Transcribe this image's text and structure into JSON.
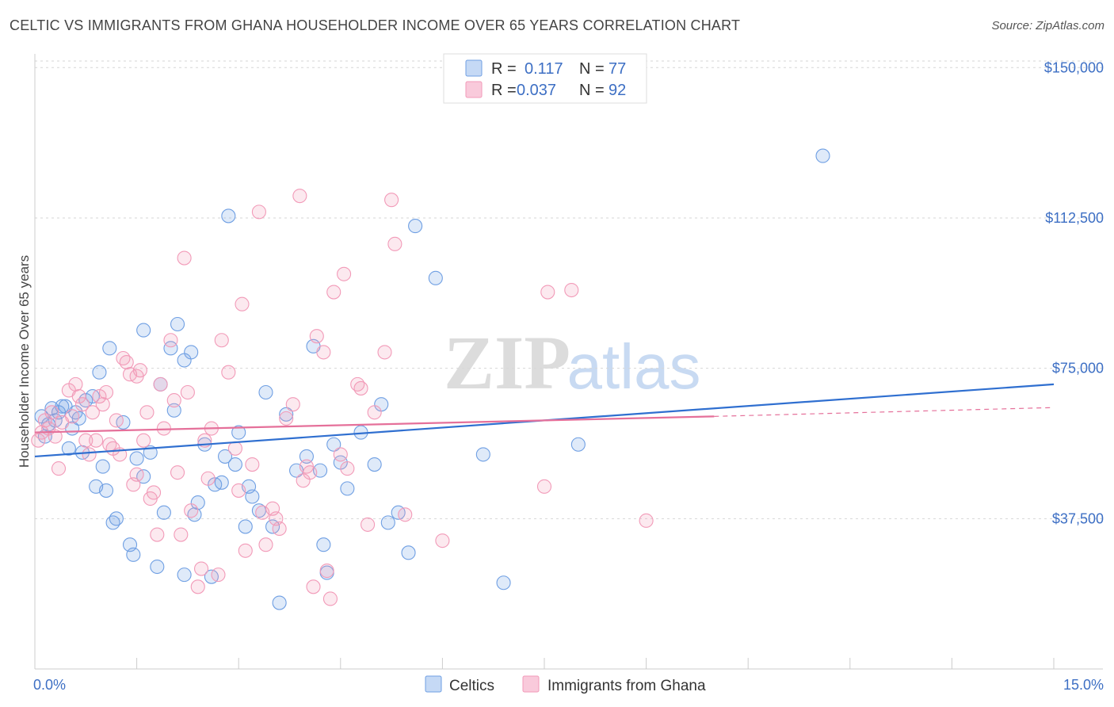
{
  "title": "CELTIC VS IMMIGRANTS FROM GHANA HOUSEHOLDER INCOME OVER 65 YEARS CORRELATION CHART",
  "source": "Source: ZipAtlas.com",
  "watermark": {
    "zip": "ZIP",
    "atlas": "atlas"
  },
  "legend_stats": [
    {
      "r_label": "R =",
      "r_value": "0.117",
      "n_label": "N =",
      "n_value": "77"
    },
    {
      "r_label": "R =",
      "r_value": "0.037",
      "n_label": "N =",
      "n_value": "92"
    }
  ],
  "chart_data": {
    "type": "scatter",
    "title": "CELTIC VS IMMIGRANTS FROM GHANA HOUSEHOLDER INCOME OVER 65 YEARS CORRELATION CHART",
    "xlabel": "",
    "ylabel": "Householder Income Over 65 years",
    "xlim": [
      0,
      15
    ],
    "ylim": [
      0,
      155000
    ],
    "x_tick_labels": [
      "0.0%",
      "15.0%"
    ],
    "y_ticks": [
      37500,
      75000,
      112500,
      150000
    ],
    "y_tick_labels": [
      "$37,500",
      "$75,000",
      "$112,500",
      "$150,000"
    ],
    "grid": true,
    "legend_position": "bottom-center",
    "colors": {
      "Celtics": "#6f9fe3",
      "Immigrants from Ghana": "#f29ab8",
      "celtics_line": "#2f6fd0",
      "ghana_line": "#e5709a"
    },
    "series": [
      {
        "name": "Celtics",
        "r": 0.117,
        "n": 77,
        "trend": {
          "x": [
            0,
            15
          ],
          "y": [
            53000,
            71000
          ]
        },
        "points": [
          [
            0.1,
            63000
          ],
          [
            0.2,
            61000
          ],
          [
            0.25,
            65000
          ],
          [
            0.3,
            62000
          ],
          [
            0.35,
            64000
          ],
          [
            0.4,
            65500
          ],
          [
            0.5,
            55000
          ],
          [
            0.55,
            60000
          ],
          [
            0.6,
            64000
          ],
          [
            0.65,
            62500
          ],
          [
            0.7,
            54000
          ],
          [
            0.75,
            67000
          ],
          [
            0.85,
            68000
          ],
          [
            0.9,
            45500
          ],
          [
            0.95,
            74000
          ],
          [
            1.0,
            50500
          ],
          [
            1.05,
            44500
          ],
          [
            1.1,
            80000
          ],
          [
            1.15,
            36500
          ],
          [
            1.2,
            37500
          ],
          [
            1.3,
            61500
          ],
          [
            1.4,
            31000
          ],
          [
            1.45,
            28500
          ],
          [
            1.5,
            52500
          ],
          [
            1.6,
            84500
          ],
          [
            1.6,
            48000
          ],
          [
            1.7,
            54000
          ],
          [
            1.8,
            25500
          ],
          [
            1.85,
            71000
          ],
          [
            1.9,
            39000
          ],
          [
            2.0,
            80000
          ],
          [
            2.05,
            64500
          ],
          [
            2.1,
            86000
          ],
          [
            2.2,
            77000
          ],
          [
            2.3,
            79000
          ],
          [
            2.35,
            38500
          ],
          [
            2.4,
            41500
          ],
          [
            2.5,
            56000
          ],
          [
            2.6,
            23000
          ],
          [
            2.65,
            46000
          ],
          [
            2.75,
            46500
          ],
          [
            2.8,
            53000
          ],
          [
            2.85,
            113000
          ],
          [
            2.95,
            51000
          ],
          [
            3.0,
            59000
          ],
          [
            3.1,
            35500
          ],
          [
            3.15,
            45500
          ],
          [
            3.2,
            43000
          ],
          [
            3.3,
            39500
          ],
          [
            3.4,
            69000
          ],
          [
            3.5,
            35500
          ],
          [
            3.6,
            16500
          ],
          [
            3.7,
            63500
          ],
          [
            3.85,
            49500
          ],
          [
            4.0,
            53000
          ],
          [
            4.1,
            80500
          ],
          [
            4.2,
            49500
          ],
          [
            4.25,
            31000
          ],
          [
            4.3,
            24000
          ],
          [
            4.4,
            56000
          ],
          [
            4.5,
            51500
          ],
          [
            4.6,
            45000
          ],
          [
            4.8,
            59000
          ],
          [
            5.0,
            51000
          ],
          [
            5.1,
            66000
          ],
          [
            5.2,
            36500
          ],
          [
            5.35,
            39000
          ],
          [
            5.5,
            29000
          ],
          [
            5.6,
            110500
          ],
          [
            5.9,
            97500
          ],
          [
            6.6,
            53500
          ],
          [
            6.9,
            21500
          ],
          [
            8.0,
            56000
          ],
          [
            11.6,
            128000
          ],
          [
            0.15,
            58000
          ],
          [
            0.45,
            65500
          ],
          [
            2.2,
            23500
          ]
        ]
      },
      {
        "name": "Immigrants from Ghana",
        "r": 0.037,
        "n": 92,
        "trend": {
          "x": [
            0,
            10
          ],
          "y": [
            59000,
            63000
          ]
        },
        "dashed_extension": {
          "x": [
            10,
            15
          ],
          "y": [
            63000,
            65200
          ]
        },
        "points": [
          [
            0.05,
            57000
          ],
          [
            0.1,
            59000
          ],
          [
            0.15,
            62000
          ],
          [
            0.2,
            60000
          ],
          [
            0.25,
            64000
          ],
          [
            0.3,
            58000
          ],
          [
            0.4,
            61500
          ],
          [
            0.5,
            69500
          ],
          [
            0.55,
            63000
          ],
          [
            0.6,
            71000
          ],
          [
            0.65,
            68000
          ],
          [
            0.7,
            66000
          ],
          [
            0.75,
            57000
          ],
          [
            0.8,
            53500
          ],
          [
            0.85,
            64000
          ],
          [
            0.9,
            57000
          ],
          [
            0.95,
            68000
          ],
          [
            1.0,
            66000
          ],
          [
            1.05,
            69000
          ],
          [
            1.1,
            56000
          ],
          [
            1.15,
            55000
          ],
          [
            1.2,
            62000
          ],
          [
            1.25,
            53500
          ],
          [
            1.3,
            77500
          ],
          [
            1.35,
            76500
          ],
          [
            1.4,
            73500
          ],
          [
            1.45,
            46000
          ],
          [
            1.5,
            73000
          ],
          [
            1.5,
            48500
          ],
          [
            1.55,
            74500
          ],
          [
            1.6,
            57000
          ],
          [
            1.65,
            64000
          ],
          [
            1.7,
            42500
          ],
          [
            1.75,
            44000
          ],
          [
            1.8,
            33500
          ],
          [
            1.85,
            71000
          ],
          [
            1.9,
            60000
          ],
          [
            2.0,
            82000
          ],
          [
            2.05,
            67000
          ],
          [
            2.1,
            49000
          ],
          [
            2.15,
            33500
          ],
          [
            2.2,
            102500
          ],
          [
            2.25,
            69000
          ],
          [
            2.3,
            39500
          ],
          [
            2.4,
            20500
          ],
          [
            2.45,
            25000
          ],
          [
            2.5,
            57000
          ],
          [
            2.55,
            47500
          ],
          [
            2.6,
            60000
          ],
          [
            2.7,
            23500
          ],
          [
            2.75,
            82000
          ],
          [
            2.85,
            74000
          ],
          [
            2.95,
            55000
          ],
          [
            3.0,
            44500
          ],
          [
            3.05,
            91000
          ],
          [
            3.1,
            29500
          ],
          [
            3.2,
            51000
          ],
          [
            3.3,
            114000
          ],
          [
            3.35,
            39000
          ],
          [
            3.4,
            31000
          ],
          [
            3.5,
            40000
          ],
          [
            3.55,
            37500
          ],
          [
            3.6,
            35000
          ],
          [
            3.7,
            62500
          ],
          [
            3.8,
            66000
          ],
          [
            3.9,
            118000
          ],
          [
            3.95,
            47000
          ],
          [
            4.0,
            50500
          ],
          [
            4.05,
            49000
          ],
          [
            4.1,
            20500
          ],
          [
            4.15,
            83000
          ],
          [
            4.25,
            79000
          ],
          [
            4.3,
            24500
          ],
          [
            4.35,
            17500
          ],
          [
            4.4,
            94000
          ],
          [
            4.5,
            53500
          ],
          [
            4.55,
            98500
          ],
          [
            4.6,
            50000
          ],
          [
            4.75,
            71000
          ],
          [
            4.8,
            70000
          ],
          [
            4.9,
            36000
          ],
          [
            5.0,
            64000
          ],
          [
            5.15,
            79000
          ],
          [
            5.25,
            117000
          ],
          [
            5.3,
            106000
          ],
          [
            5.45,
            38500
          ],
          [
            6.0,
            32000
          ],
          [
            7.5,
            45500
          ],
          [
            7.55,
            94000
          ],
          [
            7.9,
            94500
          ],
          [
            9.0,
            37000
          ],
          [
            0.35,
            50000
          ]
        ]
      }
    ]
  }
}
